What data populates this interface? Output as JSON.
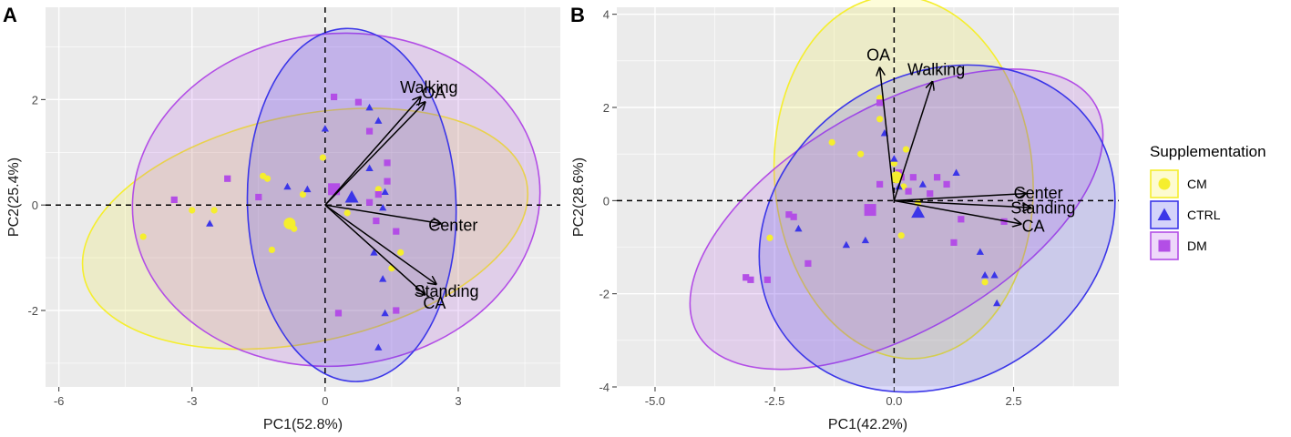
{
  "legend": {
    "title": "Supplementation",
    "entries": [
      {
        "label": "CM",
        "color": "#f5ee2e",
        "shape": "circle"
      },
      {
        "label": "CTRL",
        "color": "#3b36e8",
        "shape": "triangle"
      },
      {
        "label": "DM",
        "color": "#b34ee6",
        "shape": "square"
      }
    ]
  },
  "chart_data": [
    {
      "type": "scatter",
      "panel_label": "A",
      "xlabel": "PC1(52.8%)",
      "ylabel": "PC2(25.4%)",
      "xlim": [
        -6.3,
        5.3
      ],
      "ylim": [
        -3.45,
        3.75
      ],
      "xticks": [
        -6,
        -3,
        0,
        3
      ],
      "xtick_labels": [
        "-6",
        "-3",
        "0",
        "3"
      ],
      "yticks": [
        -2,
        0,
        2
      ],
      "ytick_labels": [
        "-2",
        "0",
        "2"
      ],
      "ellipses": [
        {
          "group": "CM",
          "cx": -0.45,
          "cy": -0.45,
          "rx": 5.1,
          "ry": 2.15,
          "angle": -12
        },
        {
          "group": "DM",
          "cx": 0.25,
          "cy": 0.1,
          "rx": 4.6,
          "ry": 3.15,
          "angle": -6
        },
        {
          "group": "CTRL",
          "cx": 0.6,
          "cy": 0.0,
          "rx": 2.35,
          "ry": 3.35,
          "angle": -2
        }
      ],
      "vectors": [
        {
          "name": "Walking",
          "x": 2.15,
          "y": 2.05
        },
        {
          "name": "OA",
          "x": 2.25,
          "y": 1.95
        },
        {
          "name": "Center",
          "x": 2.6,
          "y": -0.35
        },
        {
          "name": "Standing",
          "x": 2.5,
          "y": -1.5
        },
        {
          "name": "CA",
          "x": 2.25,
          "y": -1.7
        }
      ],
      "centroids": [
        {
          "group": "CM",
          "x": -0.8,
          "y": -0.35
        },
        {
          "group": "CTRL",
          "x": 0.6,
          "y": 0.15
        },
        {
          "group": "DM",
          "x": 0.2,
          "y": 0.3
        }
      ],
      "points": {
        "CM": [
          [
            -4.1,
            -0.6
          ],
          [
            -3.0,
            -0.1
          ],
          [
            -2.5,
            -0.1
          ],
          [
            -1.4,
            0.55
          ],
          [
            -1.3,
            0.5
          ],
          [
            -1.2,
            -0.85
          ],
          [
            -0.7,
            -0.45
          ],
          [
            -0.5,
            0.2
          ],
          [
            -0.05,
            0.9
          ],
          [
            0.5,
            -0.15
          ],
          [
            1.5,
            -1.2
          ],
          [
            1.7,
            -0.9
          ],
          [
            1.2,
            0.3
          ]
        ],
        "CTRL": [
          [
            -2.6,
            -0.35
          ],
          [
            -0.85,
            0.35
          ],
          [
            -0.4,
            0.3
          ],
          [
            0.0,
            1.45
          ],
          [
            1.0,
            1.85
          ],
          [
            1.2,
            1.6
          ],
          [
            1.0,
            0.7
          ],
          [
            1.3,
            -0.05
          ],
          [
            1.35,
            0.25
          ],
          [
            1.1,
            -0.9
          ],
          [
            1.3,
            -1.4
          ],
          [
            1.35,
            -2.05
          ],
          [
            1.2,
            -2.7
          ]
        ],
        "DM": [
          [
            -3.4,
            0.1
          ],
          [
            -2.2,
            0.5
          ],
          [
            -1.5,
            0.15
          ],
          [
            0.2,
            2.05
          ],
          [
            0.75,
            1.95
          ],
          [
            1.0,
            1.4
          ],
          [
            1.4,
            0.45
          ],
          [
            1.4,
            0.8
          ],
          [
            1.2,
            0.2
          ],
          [
            1.0,
            0.05
          ],
          [
            1.15,
            -0.3
          ],
          [
            0.3,
            -2.05
          ],
          [
            1.6,
            -0.5
          ],
          [
            1.6,
            -2.0
          ]
        ]
      }
    },
    {
      "type": "scatter",
      "panel_label": "B",
      "xlabel": "PC1(42.2%)",
      "ylabel": "PC2(28.6%)",
      "xlim": [
        -5.8,
        4.7
      ],
      "ylim": [
        -4.0,
        4.15
      ],
      "xticks": [
        -5.0,
        -2.5,
        0.0,
        2.5
      ],
      "xtick_labels": [
        "-5.0",
        "-2.5",
        "0.0",
        "2.5"
      ],
      "yticks": [
        -4,
        -2,
        0,
        2,
        4
      ],
      "ytick_labels": [
        "-4",
        "-2",
        "0",
        "2",
        "4"
      ],
      "ellipses": [
        {
          "group": "CM",
          "cx": 0.2,
          "cy": 0.5,
          "rx": 2.7,
          "ry": 3.9,
          "angle": -5
        },
        {
          "group": "DM",
          "cx": 0.05,
          "cy": -0.4,
          "rx": 4.8,
          "ry": 2.4,
          "angle": -30
        },
        {
          "group": "CTRL",
          "cx": 0.9,
          "cy": -0.6,
          "rx": 3.9,
          "ry": 3.3,
          "angle": -32
        }
      ],
      "vectors": [
        {
          "name": "OA",
          "x": -0.3,
          "y": 2.85
        },
        {
          "name": "Walking",
          "x": 0.8,
          "y": 2.55
        },
        {
          "name": "Center",
          "x": 2.75,
          "y": 0.15
        },
        {
          "name": "Standing",
          "x": 2.85,
          "y": -0.15
        },
        {
          "name": "CA",
          "x": 2.65,
          "y": -0.5
        }
      ],
      "centroids": [
        {
          "group": "CM",
          "x": 0.05,
          "y": 0.5
        },
        {
          "group": "CTRL",
          "x": 0.5,
          "y": -0.25
        },
        {
          "group": "DM",
          "x": -0.5,
          "y": -0.2
        }
      ],
      "points": {
        "CM": [
          [
            -2.6,
            -0.8
          ],
          [
            -1.3,
            1.25
          ],
          [
            -0.7,
            1.0
          ],
          [
            -0.3,
            1.75
          ],
          [
            -0.3,
            2.2
          ],
          [
            0.25,
            1.1
          ],
          [
            0.15,
            -0.75
          ],
          [
            0.2,
            0.3
          ],
          [
            0.0,
            0.8
          ],
          [
            1.9,
            -1.75
          ],
          [
            0.5,
            -0.05
          ]
        ],
        "CTRL": [
          [
            -2.0,
            -0.6
          ],
          [
            -1.0,
            -0.95
          ],
          [
            -0.6,
            -0.85
          ],
          [
            -0.2,
            1.45
          ],
          [
            0.0,
            0.9
          ],
          [
            0.1,
            0.3
          ],
          [
            0.6,
            0.35
          ],
          [
            1.3,
            0.6
          ],
          [
            1.8,
            -1.1
          ],
          [
            1.9,
            -1.6
          ],
          [
            2.1,
            -1.6
          ],
          [
            2.15,
            -2.2
          ]
        ],
        "DM": [
          [
            -3.1,
            -1.65
          ],
          [
            -3.0,
            -1.7
          ],
          [
            -2.65,
            -1.7
          ],
          [
            -2.2,
            -0.3
          ],
          [
            -2.1,
            -0.35
          ],
          [
            -1.8,
            -1.35
          ],
          [
            -0.3,
            2.1
          ],
          [
            -0.3,
            0.35
          ],
          [
            0.1,
            0.6
          ],
          [
            0.15,
            0.5
          ],
          [
            0.3,
            0.2
          ],
          [
            0.4,
            0.5
          ],
          [
            0.9,
            0.5
          ],
          [
            0.75,
            0.15
          ],
          [
            1.1,
            0.35
          ],
          [
            1.4,
            -0.4
          ],
          [
            1.25,
            -0.9
          ],
          [
            2.3,
            -0.45
          ]
        ]
      }
    }
  ]
}
